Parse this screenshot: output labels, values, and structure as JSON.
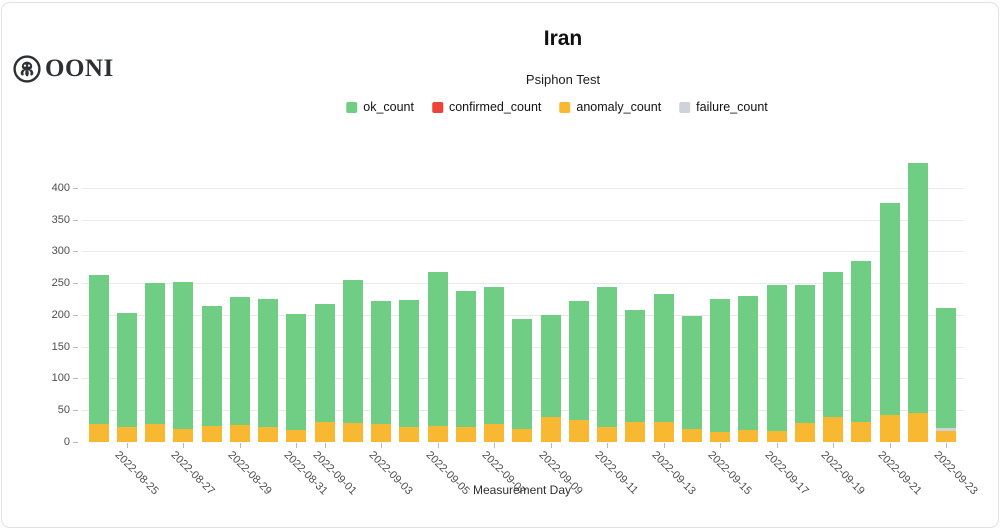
{
  "brand": {
    "name": "OONI"
  },
  "header": {
    "title": "Iran",
    "subtitle": "Psiphon Test"
  },
  "legend": {
    "items": [
      {
        "label": "ok_count",
        "color": "#6fce83"
      },
      {
        "label": "confirmed_count",
        "color": "#ef4239"
      },
      {
        "label": "anomaly_count",
        "color": "#f9b832"
      },
      {
        "label": "failure_count",
        "color": "#cdd3d8"
      }
    ]
  },
  "chart_data": {
    "type": "bar",
    "stacked": true,
    "title": "Iran",
    "subtitle": "Psiphon Test",
    "xlabel": "Measurement Day",
    "ylabel": "",
    "ylim": [
      0,
      450
    ],
    "y_ticks": [
      0,
      50,
      100,
      150,
      200,
      250,
      300,
      350,
      400
    ],
    "grid": true,
    "legend_position": "top",
    "categories": [
      "2022-08-24",
      "2022-08-25",
      "2022-08-26",
      "2022-08-27",
      "2022-08-28",
      "2022-08-29",
      "2022-08-30",
      "2022-08-31",
      "2022-09-01",
      "2022-09-02",
      "2022-09-03",
      "2022-09-04",
      "2022-09-05",
      "2022-09-06",
      "2022-09-07",
      "2022-09-08",
      "2022-09-09",
      "2022-09-10",
      "2022-09-11",
      "2022-09-12",
      "2022-09-13",
      "2022-09-14",
      "2022-09-15",
      "2022-09-16",
      "2022-09-17",
      "2022-09-18",
      "2022-09-19",
      "2022-09-20",
      "2022-09-21",
      "2022-09-22",
      "2022-09-23"
    ],
    "x_tick_labels": [
      "2022-08-25",
      "2022-08-27",
      "2022-08-29",
      "2022-08-31",
      "2022-09-01",
      "2022-09-03",
      "2022-09-05",
      "2022-09-07",
      "2022-09-09",
      "2022-09-11",
      "2022-09-13",
      "2022-09-15",
      "2022-09-17",
      "2022-09-19",
      "2022-09-21",
      "2022-09-23"
    ],
    "series": [
      {
        "name": "anomaly_count",
        "color": "#f9b832",
        "values": [
          29,
          24,
          29,
          22,
          26,
          28,
          24,
          19,
          33,
          30,
          29,
          24,
          26,
          24,
          29,
          21,
          40,
          35,
          25,
          32,
          33,
          21,
          16,
          20,
          18,
          31,
          40,
          33,
          43,
          46,
          18
        ]
      },
      {
        "name": "confirmed_count",
        "color": "#ef4239",
        "values": [
          0,
          0,
          0,
          0,
          0,
          0,
          0,
          0,
          0,
          0,
          0,
          0,
          0,
          0,
          0,
          0,
          0,
          0,
          0,
          0,
          0,
          0,
          0,
          0,
          0,
          0,
          0,
          0,
          0,
          0,
          0
        ]
      },
      {
        "name": "failure_count",
        "color": "#cdd3d8",
        "values": [
          0,
          0,
          0,
          0,
          0,
          0,
          0,
          0,
          0,
          0,
          0,
          0,
          0,
          0,
          0,
          0,
          0,
          0,
          0,
          0,
          0,
          0,
          0,
          0,
          0,
          0,
          0,
          0,
          0,
          0,
          5
        ]
      },
      {
        "name": "ok_count",
        "color": "#6fce83",
        "values": [
          235,
          179,
          222,
          231,
          189,
          201,
          202,
          183,
          185,
          225,
          193,
          200,
          242,
          215,
          215,
          174,
          161,
          187,
          219,
          176,
          201,
          178,
          210,
          210,
          230,
          217,
          228,
          253,
          333,
          393,
          189
        ]
      }
    ]
  }
}
